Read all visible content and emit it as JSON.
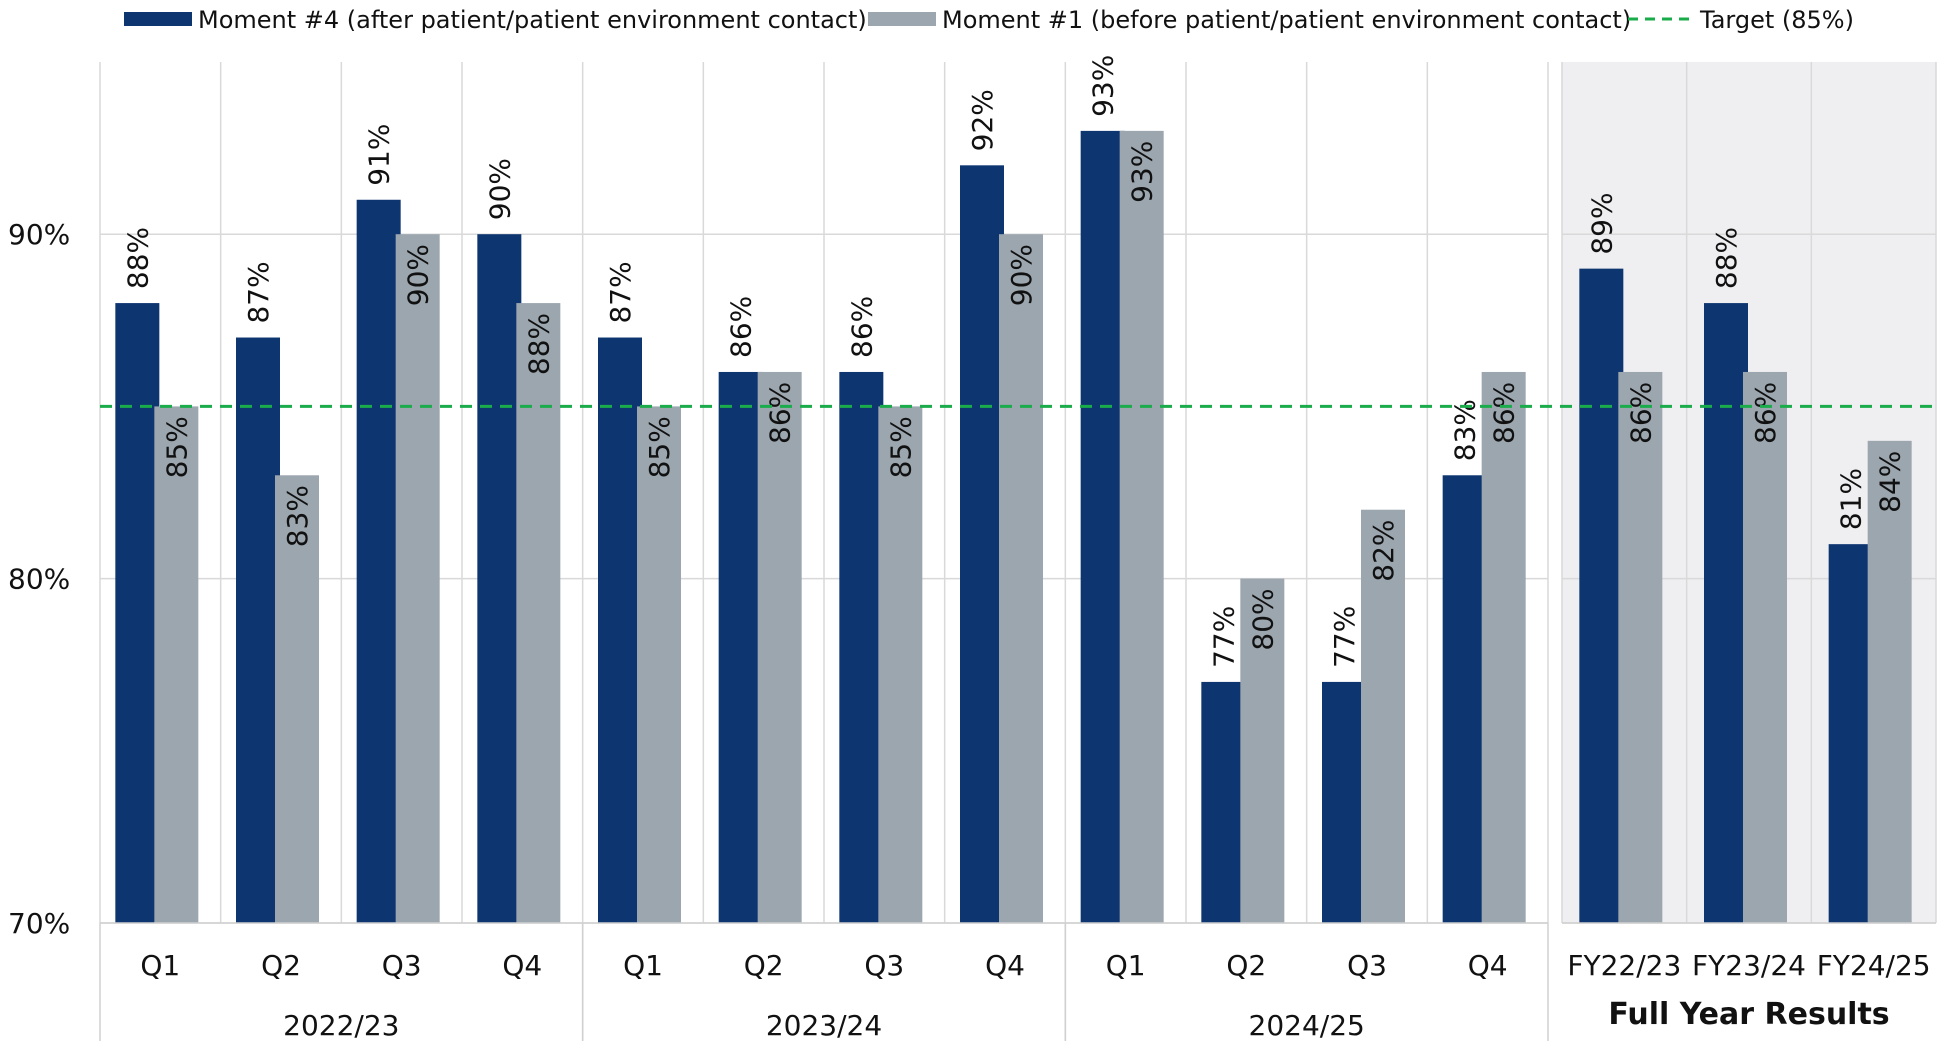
{
  "chart_data": {
    "type": "bar",
    "legend": {
      "position": "top",
      "items": [
        {
          "key": "m4",
          "label": "Moment #4 (after patient/patient environment contact)",
          "color": "#0d3570",
          "kind": "bar"
        },
        {
          "key": "m1",
          "label": "Moment #1 (before patient/patient environment contact)",
          "color": "#9ba6af",
          "kind": "bar"
        },
        {
          "key": "target",
          "label": "Target (85%)",
          "color": "#1aac4a",
          "kind": "dashed-line"
        }
      ]
    },
    "y_axis": {
      "min": 70,
      "max": 95,
      "ticks": [
        {
          "value": 70,
          "label": "70%"
        },
        {
          "value": 80,
          "label": "80%"
        },
        {
          "value": 90,
          "label": "90%"
        }
      ],
      "grid": true
    },
    "target": {
      "value": 85,
      "label": "Target (85%)"
    },
    "groups": [
      {
        "label": "2022/23",
        "bold": false,
        "shaded": false,
        "categories": [
          {
            "label": "Q1",
            "m4": 88,
            "m1": 85,
            "m4_label": "88%",
            "m1_label": "85%"
          },
          {
            "label": "Q2",
            "m4": 87,
            "m1": 83,
            "m4_label": "87%",
            "m1_label": "83%"
          },
          {
            "label": "Q3",
            "m4": 91,
            "m1": 90,
            "m4_label": "91%",
            "m1_label": "90%"
          },
          {
            "label": "Q4",
            "m4": 90,
            "m1": 88,
            "m4_label": "90%",
            "m1_label": "88%"
          }
        ]
      },
      {
        "label": "2023/24",
        "bold": false,
        "shaded": false,
        "categories": [
          {
            "label": "Q1",
            "m4": 87,
            "m1": 85,
            "m4_label": "87%",
            "m1_label": "85%"
          },
          {
            "label": "Q2",
            "m4": 86,
            "m1": 86,
            "m4_label": "86%",
            "m1_label": "86%"
          },
          {
            "label": "Q3",
            "m4": 86,
            "m1": 85,
            "m4_label": "86%",
            "m1_label": "85%"
          },
          {
            "label": "Q4",
            "m4": 92,
            "m1": 90,
            "m4_label": "92%",
            "m1_label": "90%"
          }
        ]
      },
      {
        "label": "2024/25",
        "bold": false,
        "shaded": false,
        "categories": [
          {
            "label": "Q1",
            "m4": 93,
            "m1": 93,
            "m4_label": "93%",
            "m1_label": "93%"
          },
          {
            "label": "Q2",
            "m4": 77,
            "m1": 80,
            "m4_label": "77%",
            "m1_label": "80%"
          },
          {
            "label": "Q3",
            "m4": 77,
            "m1": 82,
            "m4_label": "77%",
            "m1_label": "82%"
          },
          {
            "label": "Q4",
            "m4": 83,
            "m1": 86,
            "m4_label": "83%",
            "m1_label": "86%"
          }
        ]
      },
      {
        "label": "Full Year Results",
        "bold": true,
        "shaded": true,
        "categories": [
          {
            "label": "FY22/23",
            "m4": 89,
            "m1": 86,
            "m4_label": "89%",
            "m1_label": "86%"
          },
          {
            "label": "FY23/24",
            "m4": 88,
            "m1": 86,
            "m4_label": "88%",
            "m1_label": "86%"
          },
          {
            "label": "FY24/25",
            "m4": 81,
            "m1": 84,
            "m4_label": "81%",
            "m1_label": "84%"
          }
        ]
      }
    ]
  }
}
